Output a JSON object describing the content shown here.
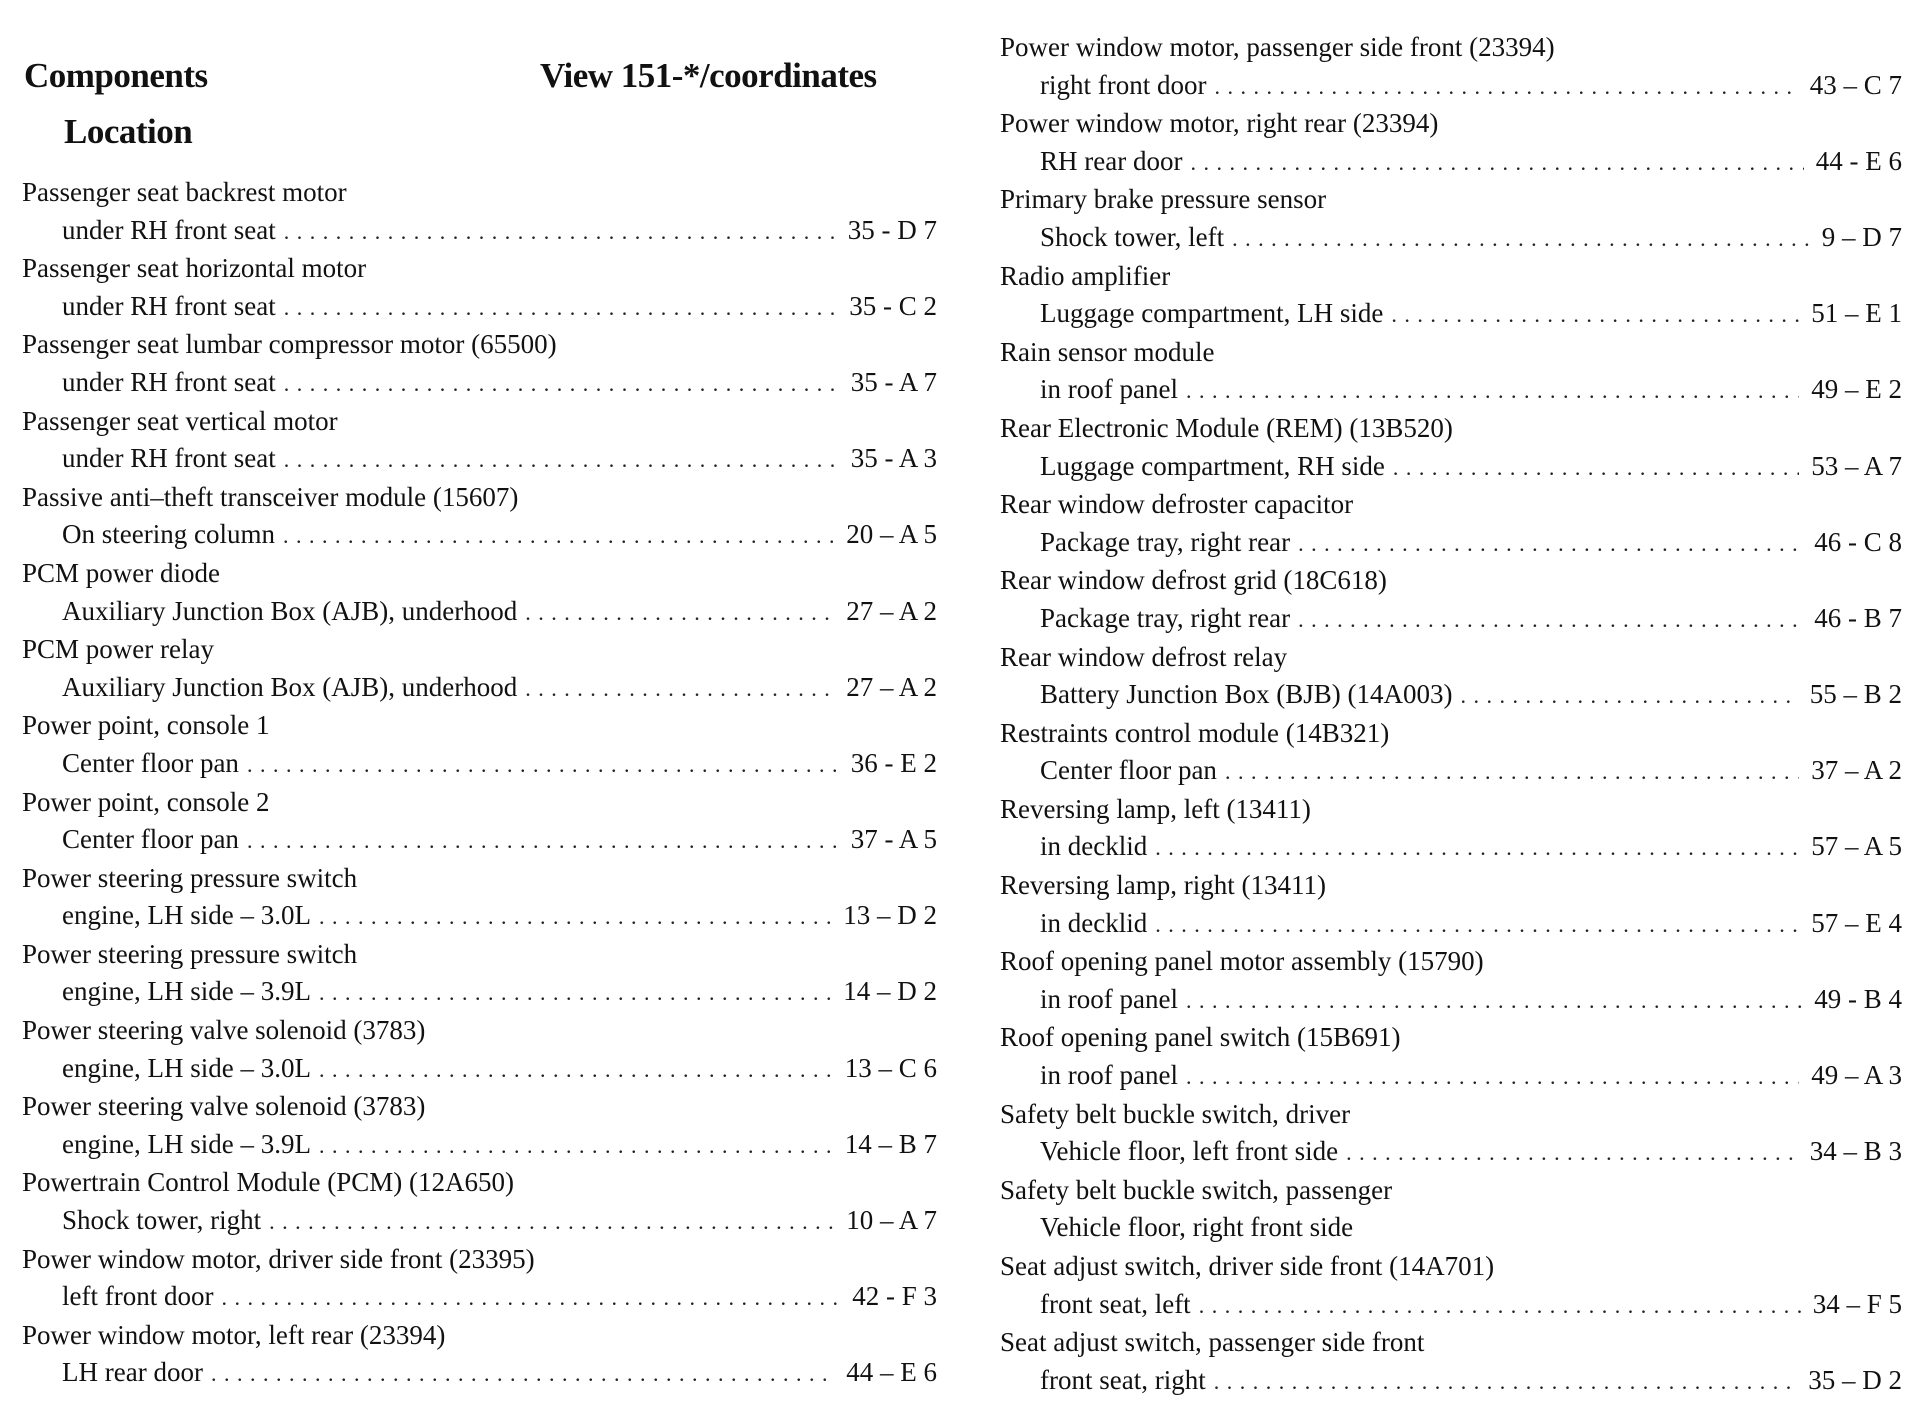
{
  "header": {
    "components": "Components",
    "view": "View 151-*/coordinates",
    "location": "Location"
  },
  "left": [
    {
      "title": "Passenger seat backrest motor",
      "location": "under RH front seat",
      "coord": "35 - D 7"
    },
    {
      "title": "Passenger seat horizontal motor",
      "location": "under RH front seat",
      "coord": "35 - C 2"
    },
    {
      "title": "Passenger seat lumbar compressor motor (65500)",
      "location": "under RH front seat",
      "coord": "35 - A 7"
    },
    {
      "title": "Passenger seat vertical motor",
      "location": "under RH front seat",
      "coord": "35 - A 3"
    },
    {
      "title": "Passive anti–theft transceiver module (15607)",
      "location": "On steering column",
      "coord": "20 – A 5"
    },
    {
      "title": "PCM power diode",
      "location": "Auxiliary Junction Box (AJB), underhood",
      "coord": "27 – A 2"
    },
    {
      "title": "PCM power relay",
      "location": "Auxiliary Junction Box (AJB), underhood",
      "coord": "27 – A 2"
    },
    {
      "title": "Power point, console 1",
      "location": "Center floor pan",
      "coord": "36 - E 2"
    },
    {
      "title": "Power point, console 2",
      "location": "Center floor pan",
      "coord": "37 - A 5"
    },
    {
      "title": "Power steering pressure switch",
      "location": "engine, LH side – 3.0L",
      "coord": "13 – D 2"
    },
    {
      "title": "Power steering pressure switch",
      "location": "engine, LH side – 3.9L",
      "coord": "14 – D 2"
    },
    {
      "title": "Power steering valve solenoid (3783)",
      "location": "engine, LH side – 3.0L",
      "coord": "13 – C 6"
    },
    {
      "title": "Power steering valve solenoid (3783)",
      "location": "engine, LH side – 3.9L",
      "coord": "14 – B 7"
    },
    {
      "title": "Powertrain Control Module (PCM) (12A650)",
      "location": "Shock tower, right",
      "coord": "10 – A 7"
    },
    {
      "title": "Power window motor, driver side front (23395)",
      "location": "left front door",
      "coord": "42 - F 3"
    },
    {
      "title": "Power window motor, left rear (23394)",
      "location": "LH rear door",
      "coord": "44 – E 6"
    }
  ],
  "right": [
    {
      "title": "Power window motor, passenger side front (23394)",
      "location": "right front door",
      "coord": "43 – C 7"
    },
    {
      "title": "Power window motor, right rear (23394)",
      "location": "RH rear door",
      "coord": "44 - E 6"
    },
    {
      "title": "Primary brake pressure sensor",
      "location": "Shock tower, left",
      "coord": "9 – D 7"
    },
    {
      "title": "Radio amplifier",
      "location": "Luggage compartment, LH side",
      "coord": "51 – E 1"
    },
    {
      "title": "Rain sensor module",
      "location": "in roof panel",
      "coord": "49 – E 2"
    },
    {
      "title": "Rear Electronic Module (REM) (13B520)",
      "location": "Luggage compartment, RH side",
      "coord": "53 – A 7"
    },
    {
      "title": "Rear window defroster capacitor",
      "location": "Package tray, right rear",
      "coord": "46 - C 8"
    },
    {
      "title": "Rear window defrost grid (18C618)",
      "location": "Package tray, right rear",
      "coord": "46 - B 7"
    },
    {
      "title": "Rear window defrost relay",
      "location": "Battery Junction Box (BJB) (14A003)",
      "coord": "55 – B 2"
    },
    {
      "title": "Restraints control module (14B321)",
      "location": "Center floor pan",
      "coord": "37 – A 2"
    },
    {
      "title": "Reversing lamp, left (13411)",
      "location": "in decklid",
      "coord": "57 – A 5"
    },
    {
      "title": "Reversing lamp, right (13411)",
      "location": "in decklid",
      "coord": "57 – E 4"
    },
    {
      "title": "Roof opening panel motor assembly (15790)",
      "location": "in roof panel",
      "coord": "49 - B 4"
    },
    {
      "title": "Roof opening panel switch (15B691)",
      "location": "in roof panel",
      "coord": "49 – A 3"
    },
    {
      "title": "Safety belt buckle switch, driver",
      "location": "Vehicle floor, left front side",
      "coord": "34 – B 3"
    },
    {
      "title": "Safety belt buckle switch, passenger",
      "location": "Vehicle floor, right front side",
      "coord": ""
    },
    {
      "title": "Seat adjust switch, driver side front (14A701)",
      "location": "front seat, left",
      "coord": "34 – F 5"
    },
    {
      "title": "Seat adjust switch, passenger side front",
      "location": "front seat, right",
      "coord": "35 – D 2"
    }
  ]
}
